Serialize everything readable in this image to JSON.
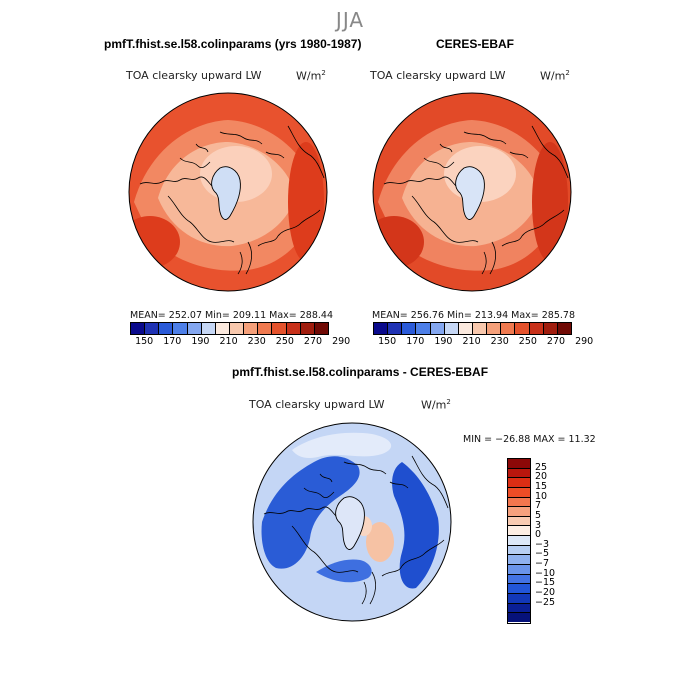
{
  "suptitle": "JJA",
  "panels": [
    {
      "title": "pmfT.fhist.se.l58.colinparams (yrs 1980-1987)",
      "left_label": "TOA clearsky upward LW",
      "right_label": "W/m",
      "right_sup": "2",
      "stats": "MEAN= 252.07   Min= 209.11   Max= 288.44",
      "colors": {
        "ocean": "#e8522e",
        "mid": "#f28862",
        "land": "#f7b899",
        "pole": "#fbd0bb",
        "hot": "#dd3c1c",
        "cold": "#cfdef5"
      }
    },
    {
      "title": "CERES-EBAF",
      "left_label": "TOA clearsky upward LW",
      "right_label": "W/m",
      "right_sup": "2",
      "stats": "MEAN= 256.76   Min= 213.94   Max= 285.78",
      "colors": {
        "ocean": "#e24a28",
        "mid": "#f08360",
        "land": "#f6b292",
        "pole": "#fbd3bf",
        "hot": "#d3361a",
        "cold": "#d8e4f7"
      }
    }
  ],
  "colorbar_top": {
    "colors": [
      "#0a0a8c",
      "#1f32b4",
      "#2a5ad8",
      "#4d7fe8",
      "#84a7f0",
      "#c6d7f5",
      "#fbe9de",
      "#f8c8ad",
      "#f5a07a",
      "#f07a50",
      "#e4522c",
      "#c8311a",
      "#a01d0e",
      "#700a05"
    ],
    "labels": [
      "150",
      "170",
      "190",
      "210",
      "230",
      "250",
      "270",
      "290"
    ]
  },
  "diff": {
    "title": "pmfT.fhist.se.l58.colinparams - CERES-EBAF",
    "left_label": "TOA clearsky upward LW",
    "right_label": "W/m",
    "right_sup": "2",
    "stats": "MIN = −26.88  MAX =  11.32",
    "colorbar": {
      "colors": [
        "#8c0808",
        "#b8160d",
        "#dc2e14",
        "#ee4d26",
        "#f3764e",
        "#f6a17e",
        "#f9cbb2",
        "#fdeee4",
        "#dde8f8",
        "#b8cff3",
        "#8fb1ef",
        "#6a94ea",
        "#4373e4",
        "#2256d8",
        "#1238b8",
        "#0a1f96",
        "#06127a"
      ],
      "labels": [
        "25",
        "20",
        "15",
        "10",
        "7",
        "5",
        "3",
        "0",
        "−3",
        "−5",
        "−7",
        "−10",
        "−15",
        "−20",
        "−25"
      ]
    }
  }
}
